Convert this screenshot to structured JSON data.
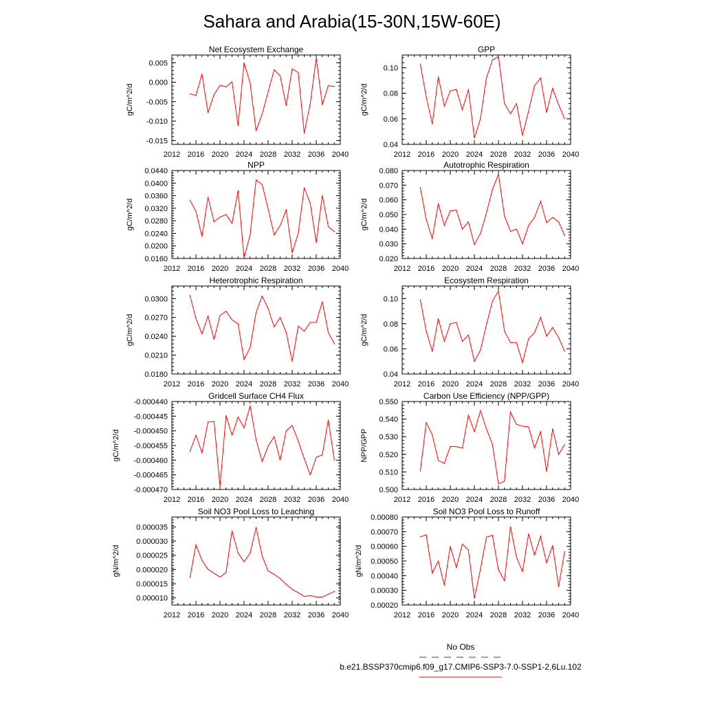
{
  "title": "Sahara and Arabia(15-30N,15W-60E)",
  "colors": {
    "model": "#ff0000",
    "obs": "#3333cc",
    "axis": "#000000"
  },
  "legend": {
    "obs_label": "No Obs",
    "model_label": "b.e21.BSSP370cmip6.f09_g17.CMIP6-SSP3-7.0-SSP1-2.6Lu.102"
  },
  "chart_data": [
    {
      "type": "line",
      "title": "Net Ecosystem Exchange",
      "ylabel": "gC/m^2/d",
      "xlim": [
        2012,
        2040
      ],
      "x_ticks": [
        2012,
        2016,
        2020,
        2024,
        2028,
        2032,
        2036,
        2040
      ],
      "x_tick_labels": [
        "2012",
        "2016",
        "2020",
        "2024",
        "2028",
        "2032",
        "2036",
        "2040"
      ],
      "ylim": [
        -0.016,
        0.007
      ],
      "y_ticks": [
        -0.015,
        -0.01,
        -0.005,
        0.0,
        0.005
      ],
      "y_tick_labels": [
        "-0.015",
        "-0.010",
        "-0.005",
        "0.000",
        "0.005"
      ],
      "series": [
        {
          "x": [
            2015,
            2016,
            2017,
            2018,
            2019,
            2020,
            2021,
            2022,
            2023,
            2024,
            2025,
            2026,
            2027,
            2028,
            2029,
            2030,
            2031,
            2032,
            2033,
            2034,
            2035,
            2036,
            2037,
            2038,
            2039
          ],
          "values": [
            -0.003,
            -0.0034,
            0.0021,
            -0.0078,
            -0.0032,
            -0.0008,
            -0.0012,
            0.0001,
            -0.0112,
            0.005,
            -0.0002,
            -0.0125,
            -0.0082,
            -0.0025,
            0.0032,
            0.0016,
            -0.006,
            0.0034,
            0.0025,
            -0.0131,
            -0.0055,
            0.0063,
            -0.0058,
            -0.0009,
            -0.0011
          ]
        }
      ]
    },
    {
      "type": "line",
      "title": "GPP",
      "ylabel": "gC/m^2/d",
      "xlim": [
        2012,
        2040
      ],
      "x_ticks": [
        2012,
        2016,
        2020,
        2024,
        2028,
        2032,
        2036,
        2040
      ],
      "x_tick_labels": [
        "2012",
        "2016",
        "2020",
        "2024",
        "2028",
        "2032",
        "2036",
        "2040"
      ],
      "ylim": [
        0.04,
        0.11
      ],
      "y_ticks": [
        0.04,
        0.06,
        0.08,
        0.1
      ],
      "y_tick_labels": [
        "0.04",
        "0.06",
        "0.08",
        "0.10"
      ],
      "series": [
        {
          "x": [
            2015,
            2016,
            2017,
            2018,
            2019,
            2020,
            2021,
            2022,
            2023,
            2024,
            2025,
            2026,
            2027,
            2028,
            2029,
            2030,
            2031,
            2032,
            2033,
            2034,
            2035,
            2036,
            2037,
            2038,
            2039
          ],
          "values": [
            0.103,
            0.077,
            0.056,
            0.093,
            0.07,
            0.082,
            0.083,
            0.067,
            0.083,
            0.045,
            0.06,
            0.092,
            0.106,
            0.109,
            0.072,
            0.064,
            0.072,
            0.047,
            0.066,
            0.086,
            0.092,
            0.065,
            0.084,
            0.071,
            0.06
          ]
        }
      ]
    },
    {
      "type": "line",
      "title": "NPP",
      "ylabel": "gC/m^2/d",
      "xlim": [
        2012,
        2040
      ],
      "x_ticks": [
        2012,
        2016,
        2020,
        2024,
        2028,
        2032,
        2036,
        2040
      ],
      "x_tick_labels": [
        "2012",
        "2016",
        "2020",
        "2024",
        "2028",
        "2032",
        "2036",
        "2040"
      ],
      "ylim": [
        0.016,
        0.044
      ],
      "y_ticks": [
        0.016,
        0.02,
        0.024,
        0.028,
        0.032,
        0.036,
        0.04,
        0.044
      ],
      "y_tick_labels": [
        "0.0160",
        "0.0200",
        "0.0240",
        "0.0280",
        "0.0320",
        "0.0360",
        "0.0400",
        "0.0440"
      ],
      "series": [
        {
          "x": [
            2015,
            2016,
            2017,
            2018,
            2019,
            2020,
            2021,
            2022,
            2023,
            2024,
            2025,
            2026,
            2027,
            2028,
            2029,
            2030,
            2031,
            2032,
            2033,
            2034,
            2035,
            2036,
            2037,
            2038,
            2039
          ],
          "values": [
            0.0345,
            0.031,
            0.023,
            0.0355,
            0.0277,
            0.0292,
            0.03,
            0.0272,
            0.0376,
            0.0162,
            0.0235,
            0.041,
            0.0395,
            0.0318,
            0.0235,
            0.0265,
            0.0315,
            0.0178,
            0.024,
            0.0385,
            0.0335,
            0.021,
            0.036,
            0.0262,
            0.0245
          ]
        }
      ]
    },
    {
      "type": "line",
      "title": "Autotrophic Respiration",
      "ylabel": "gC/m^2/d",
      "xlim": [
        2012,
        2040
      ],
      "x_ticks": [
        2012,
        2016,
        2020,
        2024,
        2028,
        2032,
        2036,
        2040
      ],
      "x_tick_labels": [
        "2012",
        "2016",
        "2020",
        "2024",
        "2028",
        "2032",
        "2036",
        "2040"
      ],
      "ylim": [
        0.02,
        0.08
      ],
      "y_ticks": [
        0.02,
        0.03,
        0.04,
        0.05,
        0.06,
        0.07,
        0.08
      ],
      "y_tick_labels": [
        "0.020",
        "0.030",
        "0.040",
        "0.050",
        "0.060",
        "0.070",
        "0.080"
      ],
      "series": [
        {
          "x": [
            2015,
            2016,
            2017,
            2018,
            2019,
            2020,
            2021,
            2022,
            2023,
            2024,
            2025,
            2026,
            2027,
            2028,
            2029,
            2030,
            2031,
            2032,
            2033,
            2034,
            2035,
            2036,
            2037,
            2038,
            2039
          ],
          "values": [
            0.0685,
            0.0465,
            0.0335,
            0.0575,
            0.0425,
            0.0525,
            0.053,
            0.04,
            0.045,
            0.0295,
            0.037,
            0.051,
            0.067,
            0.0775,
            0.049,
            0.0385,
            0.04,
            0.03,
            0.0425,
            0.048,
            0.059,
            0.0445,
            0.048,
            0.045,
            0.0355
          ]
        }
      ]
    },
    {
      "type": "line",
      "title": "Heterotrophic Respiration",
      "ylabel": "gC/m^2/d",
      "xlim": [
        2012,
        2040
      ],
      "x_ticks": [
        2012,
        2016,
        2020,
        2024,
        2028,
        2032,
        2036,
        2040
      ],
      "x_tick_labels": [
        "2012",
        "2016",
        "2020",
        "2024",
        "2028",
        "2032",
        "2036",
        "2040"
      ],
      "ylim": [
        0.018,
        0.032
      ],
      "y_ticks": [
        0.018,
        0.021,
        0.024,
        0.027,
        0.03
      ],
      "y_tick_labels": [
        "0.0180",
        "0.0210",
        "0.0240",
        "0.0270",
        "0.0300"
      ],
      "series": [
        {
          "x": [
            2015,
            2016,
            2017,
            2018,
            2019,
            2020,
            2021,
            2022,
            2023,
            2024,
            2025,
            2026,
            2027,
            2028,
            2029,
            2030,
            2031,
            2032,
            2033,
            2034,
            2035,
            2036,
            2037,
            2038,
            2039
          ],
          "values": [
            0.0305,
            0.0268,
            0.0244,
            0.0272,
            0.0235,
            0.0273,
            0.028,
            0.0266,
            0.026,
            0.0203,
            0.0222,
            0.0278,
            0.0304,
            0.0284,
            0.0255,
            0.027,
            0.0246,
            0.02,
            0.0256,
            0.0248,
            0.0262,
            0.0262,
            0.0295,
            0.0246,
            0.0228
          ]
        }
      ]
    },
    {
      "type": "line",
      "title": "Ecosystem Respiration",
      "ylabel": "gC/m^2/d",
      "xlim": [
        2012,
        2040
      ],
      "x_ticks": [
        2012,
        2016,
        2020,
        2024,
        2028,
        2032,
        2036,
        2040
      ],
      "x_tick_labels": [
        "2012",
        "2016",
        "2020",
        "2024",
        "2028",
        "2032",
        "2036",
        "2040"
      ],
      "ylim": [
        0.04,
        0.11
      ],
      "y_ticks": [
        0.04,
        0.06,
        0.08,
        0.1
      ],
      "y_tick_labels": [
        "0.04",
        "0.06",
        "0.08",
        "0.10"
      ],
      "series": [
        {
          "x": [
            2015,
            2016,
            2017,
            2018,
            2019,
            2020,
            2021,
            2022,
            2023,
            2024,
            2025,
            2026,
            2027,
            2028,
            2029,
            2030,
            2031,
            2032,
            2033,
            2034,
            2035,
            2036,
            2037,
            2038,
            2039
          ],
          "values": [
            0.099,
            0.074,
            0.058,
            0.084,
            0.066,
            0.08,
            0.081,
            0.066,
            0.071,
            0.05,
            0.059,
            0.079,
            0.098,
            0.106,
            0.074,
            0.065,
            0.065,
            0.049,
            0.068,
            0.073,
            0.085,
            0.07,
            0.077,
            0.069,
            0.058
          ]
        }
      ]
    },
    {
      "type": "line",
      "title": "Gridcell Surface CH4 Flux",
      "ylabel": "gC/m^2/d",
      "xlim": [
        2012,
        2040
      ],
      "x_ticks": [
        2012,
        2016,
        2020,
        2024,
        2028,
        2032,
        2036,
        2040
      ],
      "x_tick_labels": [
        "2012",
        "2016",
        "2020",
        "2024",
        "2028",
        "2032",
        "2036",
        "2040"
      ],
      "ylim": [
        -0.00047,
        -0.00044
      ],
      "y_ticks": [
        -0.00047,
        -0.000465,
        -0.00046,
        -0.000455,
        -0.00045,
        -0.000445,
        -0.00044
      ],
      "y_tick_labels": [
        "-0.000470",
        "-0.000465",
        "-0.000460",
        "-0.000455",
        "-0.000450",
        "-0.000445",
        "-0.000440"
      ],
      "series": [
        {
          "x": [
            2015,
            2016,
            2017,
            2018,
            2019,
            2020,
            2021,
            2022,
            2023,
            2024,
            2025,
            2026,
            2027,
            2028,
            2029,
            2030,
            2031,
            2032,
            2033,
            2034,
            2035,
            2036,
            2037,
            2038,
            2039
          ],
          "values": [
            -0.000457,
            -0.0004515,
            -0.0004575,
            -0.000447,
            -0.0004468,
            -0.000469,
            -0.0004448,
            -0.0004515,
            -0.0004453,
            -0.000449,
            -0.0004415,
            -0.000453,
            -0.0004605,
            -0.0004552,
            -0.000452,
            -0.00046,
            -0.00045,
            -0.0004482,
            -0.0004535,
            -0.0004595,
            -0.000465,
            -0.000459,
            -0.0004582,
            -0.0004463,
            -0.00046
          ]
        }
      ]
    },
    {
      "type": "line",
      "title": "Carbon Use Efficiency (NPP/GPP)",
      "ylabel": "NPP/GPP",
      "xlim": [
        2012,
        2040
      ],
      "x_ticks": [
        2012,
        2016,
        2020,
        2024,
        2028,
        2032,
        2036,
        2040
      ],
      "x_tick_labels": [
        "2012",
        "2016",
        "2020",
        "2024",
        "2028",
        "2032",
        "2036",
        "2040"
      ],
      "ylim": [
        0.5,
        0.55
      ],
      "y_ticks": [
        0.5,
        0.51,
        0.52,
        0.53,
        0.54,
        0.55
      ],
      "y_tick_labels": [
        "0.500",
        "0.510",
        "0.520",
        "0.530",
        "0.540",
        "0.550"
      ],
      "series": [
        {
          "x": [
            2015,
            2016,
            2017,
            2018,
            2019,
            2020,
            2021,
            2022,
            2023,
            2024,
            2025,
            2026,
            2027,
            2028,
            2029,
            2030,
            2031,
            2032,
            2033,
            2034,
            2035,
            2036,
            2037,
            2038,
            2039
          ],
          "values": [
            0.5105,
            0.538,
            0.531,
            0.5165,
            0.5148,
            0.5245,
            0.5243,
            0.5235,
            0.5422,
            0.5328,
            0.5448,
            0.5345,
            0.5255,
            0.5032,
            0.5048,
            0.544,
            0.537,
            0.536,
            0.5355,
            0.5235,
            0.533,
            0.5102,
            0.5345,
            0.52,
            0.5255
          ]
        }
      ]
    },
    {
      "type": "line",
      "title": "Soil NO3 Pool Loss to Leaching",
      "ylabel": "gN/m^2/d",
      "xlim": [
        2012,
        2040
      ],
      "x_ticks": [
        2012,
        2016,
        2020,
        2024,
        2028,
        2032,
        2036,
        2040
      ],
      "x_tick_labels": [
        "2012",
        "2016",
        "2020",
        "2024",
        "2028",
        "2032",
        "2036",
        "2040"
      ],
      "ylim": [
        7.5e-06,
        3.85e-05
      ],
      "y_ticks": [
        1e-05,
        1.5e-05,
        2e-05,
        2.5e-05,
        3e-05,
        3.5e-05
      ],
      "y_tick_labels": [
        "0.000010",
        "0.000015",
        "0.000020",
        "0.000025",
        "0.000030",
        "0.000035"
      ],
      "series": [
        {
          "x": [
            2015,
            2016,
            2017,
            2018,
            2019,
            2020,
            2021,
            2022,
            2023,
            2024,
            2025,
            2026,
            2027,
            2028,
            2029,
            2030,
            2031,
            2032,
            2033,
            2034,
            2035,
            2036,
            2037,
            2038,
            2039
          ],
          "values": [
            1.72e-05,
            2.87e-05,
            2.32e-05,
            2.01e-05,
            1.87e-05,
            1.73e-05,
            1.9e-05,
            3.36e-05,
            2.58e-05,
            2.27e-05,
            2.58e-05,
            3.48e-05,
            2.48e-05,
            1.95e-05,
            1.83e-05,
            1.68e-05,
            1.48e-05,
            1.3e-05,
            1.18e-05,
            1.05e-05,
            1.08e-05,
            1.03e-05,
            1.03e-05,
            1.13e-05,
            1.23e-05
          ]
        }
      ]
    },
    {
      "type": "line",
      "title": "Soil NO3 Pool Loss to Runoff",
      "ylabel": "gN/m^2/d",
      "xlim": [
        2012,
        2040
      ],
      "x_ticks": [
        2012,
        2016,
        2020,
        2024,
        2028,
        2032,
        2036,
        2040
      ],
      "x_tick_labels": [
        "2012",
        "2016",
        "2020",
        "2024",
        "2028",
        "2032",
        "2036",
        "2040"
      ],
      "ylim": [
        0.0002,
        0.0008
      ],
      "y_ticks": [
        0.0002,
        0.0003,
        0.0004,
        0.0005,
        0.0006,
        0.0007,
        0.0008
      ],
      "y_tick_labels": [
        "0.00020",
        "0.00030",
        "0.00040",
        "0.00050",
        "0.00060",
        "0.00070",
        "0.00080"
      ],
      "series": [
        {
          "x": [
            2015,
            2016,
            2017,
            2018,
            2019,
            2020,
            2021,
            2022,
            2023,
            2024,
            2025,
            2026,
            2027,
            2028,
            2029,
            2030,
            2031,
            2032,
            2033,
            2034,
            2035,
            2036,
            2037,
            2038,
            2039
          ],
          "values": [
            0.000665,
            0.000678,
            0.000418,
            0.0005,
            0.000335,
            0.0006,
            0.000455,
            0.000615,
            0.000575,
            0.000245,
            0.000445,
            0.000662,
            0.000675,
            0.00044,
            0.000365,
            0.000732,
            0.000525,
            0.000428,
            0.000685,
            0.00054,
            0.000668,
            0.000488,
            0.000605,
            0.000325,
            0.000565
          ]
        }
      ]
    }
  ]
}
